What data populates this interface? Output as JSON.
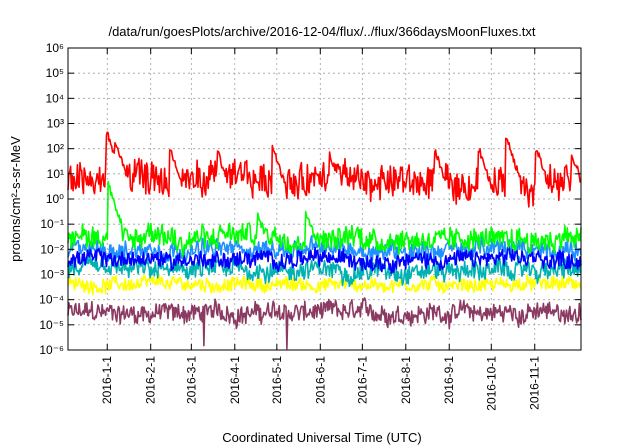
{
  "chart_data": {
    "type": "line",
    "title": "/data/run/goesPlots/archive/2016-12-04/flux/../flux/366daysMoonFluxes.txt",
    "xlabel": "Coordinated Universal Time (UTC)",
    "ylabel": "protons/cm²-s-sr-MeV",
    "yscale": "log",
    "ylim_exponents": [
      -6,
      6
    ],
    "y_ticks": [
      "10⁻⁶",
      "10⁻⁵",
      "10⁻⁴",
      "10⁻³",
      "10⁻²",
      "10⁻¹",
      "10⁰",
      "10¹",
      "10²",
      "10³",
      "10⁴",
      "10⁵",
      "10⁶"
    ],
    "x_range": [
      "2015-12-04",
      "2016-12-04"
    ],
    "x_ticks": [
      "2016-1-1",
      "2016-2-1",
      "2016-3-1",
      "2016-4-1",
      "2016-5-1",
      "2016-6-1",
      "2016-7-1",
      "2016-8-1",
      "2016-9-1",
      "2016-10-1",
      "2016-11-1"
    ],
    "grid": true,
    "series": [
      {
        "color": "#8b3a62",
        "median": 3e-05,
        "spread_decades": 0.35,
        "events": [
          {
            "date": "2016-03-10",
            "min": 1.5e-06
          },
          {
            "date": "2016-05-08",
            "min": 9e-07
          }
        ]
      },
      {
        "color": "#ffff00",
        "median": 0.0004,
        "spread_decades": 0.25,
        "events": []
      },
      {
        "color": "#00b2b2",
        "median": 0.0015,
        "spread_decades": 0.35,
        "events": []
      },
      {
        "color": "#1e90ff",
        "median": 0.01,
        "spread_decades": 0.35,
        "events": []
      },
      {
        "color": "#0000ff",
        "median": 0.004,
        "spread_decades": 0.3,
        "events": []
      },
      {
        "color": "#00ff00",
        "median": 0.03,
        "spread_decades": 0.4,
        "events": [
          {
            "date": "2016-01-02",
            "peak": 5
          },
          {
            "date": "2016-04-18",
            "peak": 0.3
          },
          {
            "date": "2016-05-22",
            "peak": 0.4
          }
        ]
      },
      {
        "color": "#ff0000",
        "median": 5,
        "spread_decades": 0.6,
        "events": [
          {
            "date": "2016-01-01",
            "peak": 600
          },
          {
            "date": "2016-01-07",
            "peak": 250
          },
          {
            "date": "2016-02-15",
            "peak": 150
          },
          {
            "date": "2016-03-20",
            "peak": 100
          },
          {
            "date": "2016-04-28",
            "peak": 150
          },
          {
            "date": "2016-06-08",
            "peak": 80
          },
          {
            "date": "2016-08-22",
            "peak": 130
          },
          {
            "date": "2016-09-22",
            "peak": 150
          },
          {
            "date": "2016-10-12",
            "peak": 350
          },
          {
            "date": "2016-11-02",
            "peak": 150
          },
          {
            "date": "2016-11-28",
            "peak": 70
          }
        ]
      }
    ]
  }
}
